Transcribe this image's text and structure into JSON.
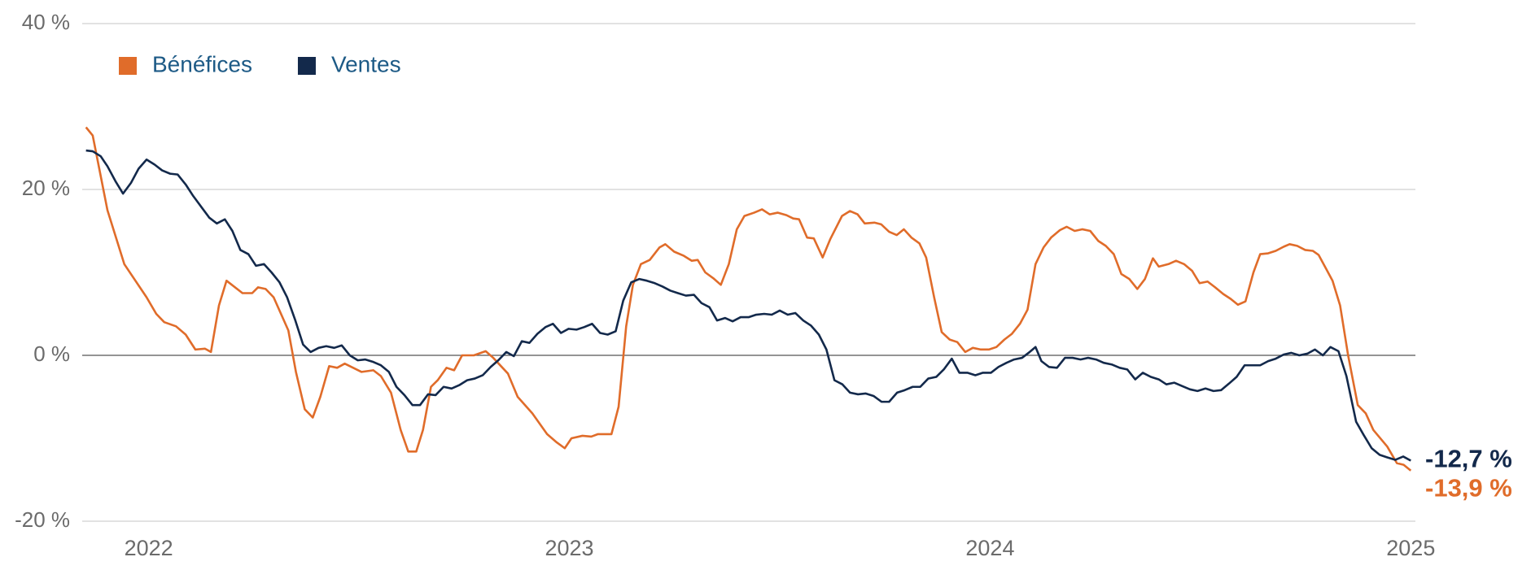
{
  "chart_data": {
    "type": "line",
    "legend": "top-left",
    "grid": true,
    "xlim": [
      2021.842,
      2025.011
    ],
    "xticks": [
      2022,
      2023,
      2024,
      2025
    ],
    "ylim": [
      -20,
      40
    ],
    "yticks": [
      {
        "value": -20,
        "label": "-20 %"
      },
      {
        "value": 0,
        "label": "0 %"
      },
      {
        "value": 20,
        "label": "20 %"
      },
      {
        "value": 40,
        "label": "40 %"
      }
    ],
    "series": [
      {
        "name": "Bénéfices",
        "color": "#e06c2a",
        "end_label": "-13,9 %",
        "x": [
          2021.851,
          2021.867,
          2021.902,
          2021.942,
          2021.995,
          2022.018,
          2022.037,
          2022.065,
          2022.088,
          2022.111,
          2022.134,
          2022.148,
          2022.167,
          2022.185,
          2022.223,
          2022.246,
          2022.26,
          2022.278,
          2022.297,
          2022.332,
          2022.35,
          2022.371,
          2022.39,
          2022.408,
          2022.429,
          2022.448,
          2022.466,
          2022.506,
          2022.534,
          2022.552,
          2022.576,
          2022.599,
          2022.617,
          2022.636,
          2022.652,
          2022.671,
          2022.687,
          2022.708,
          2022.726,
          2022.745,
          2022.773,
          2022.801,
          2022.819,
          2022.854,
          2022.877,
          2022.912,
          2022.947,
          2022.97,
          2022.989,
          2023.005,
          2023.031,
          2023.052,
          2023.068,
          2023.1,
          2023.117,
          2023.135,
          2023.151,
          2023.17,
          2023.191,
          2023.214,
          2023.228,
          2023.249,
          2023.272,
          2023.291,
          2023.305,
          2023.323,
          2023.342,
          2023.36,
          2023.379,
          2023.398,
          2023.416,
          2023.439,
          2023.458,
          2023.476,
          2023.495,
          2023.516,
          2023.532,
          2023.546,
          2023.565,
          2023.581,
          2023.602,
          2023.62,
          2023.648,
          2023.667,
          2023.685,
          2023.702,
          2023.725,
          2023.741,
          2023.76,
          2023.778,
          2023.795,
          2023.813,
          2023.832,
          2023.848,
          2023.867,
          2023.885,
          2023.904,
          2023.922,
          2023.941,
          2023.959,
          2023.978,
          2023.997,
          2024.015,
          2024.034,
          2024.052,
          2024.071,
          2024.089,
          2024.108,
          2024.127,
          2024.145,
          2024.166,
          2024.182,
          2024.201,
          2024.219,
          2024.238,
          2024.257,
          2024.275,
          2024.294,
          2024.312,
          2024.331,
          2024.35,
          2024.368,
          2024.387,
          2024.401,
          2024.424,
          2024.442,
          2024.461,
          2024.48,
          2024.498,
          2024.517,
          2024.535,
          2024.554,
          2024.572,
          2024.589,
          2024.607,
          2024.626,
          2024.642,
          2024.661,
          2024.679,
          2024.698,
          2024.712,
          2024.73,
          2024.749,
          2024.767,
          2024.781,
          2024.798,
          2024.814,
          2024.832,
          2024.851,
          2024.874,
          2024.893,
          2024.911,
          2024.944,
          2024.967,
          2024.983,
          2025.0
        ],
        "values": [
          27.5,
          26.5,
          17.5,
          11,
          7,
          5,
          4,
          3.5,
          2.5,
          0.7,
          0.8,
          0.4,
          6,
          9,
          7.5,
          7.5,
          8.2,
          8,
          7,
          3,
          -2,
          -6.5,
          -7.5,
          -5,
          -1.3,
          -1.5,
          -1,
          -2,
          -1.8,
          -2.5,
          -4.5,
          -9,
          -11.6,
          -11.6,
          -9,
          -3.8,
          -3,
          -1.5,
          -1.8,
          0,
          0,
          0.5,
          -0.3,
          -2.2,
          -5,
          -7,
          -9.5,
          -10.5,
          -11.2,
          -10,
          -9.7,
          -9.8,
          -9.5,
          -9.5,
          -6.2,
          3.5,
          8.5,
          11,
          11.5,
          13,
          13.4,
          12.5,
          12,
          11.4,
          11.5,
          10,
          9.3,
          8.5,
          11,
          15.2,
          16.8,
          17.2,
          17.6,
          17,
          17.2,
          16.9,
          16.5,
          16.4,
          14.2,
          14.1,
          11.8,
          14,
          16.8,
          17.4,
          17,
          15.9,
          16,
          15.8,
          14.9,
          14.5,
          15.2,
          14.2,
          13.5,
          11.8,
          7,
          2.8,
          1.9,
          1.6,
          0.4,
          0.9,
          0.7,
          0.7,
          1,
          1.9,
          2.6,
          3.8,
          5.5,
          11,
          13,
          14.2,
          15.1,
          15.5,
          15,
          15.2,
          15,
          13.8,
          13.2,
          12.2,
          9.8,
          9.2,
          8,
          9.2,
          11.7,
          10.7,
          11,
          11.4,
          11,
          10.2,
          8.7,
          8.9,
          8.2,
          7.4,
          6.8,
          6.1,
          6.5,
          10,
          12.2,
          12.3,
          12.6,
          13.1,
          13.4,
          13.2,
          12.7,
          12.6,
          12.1,
          10.5,
          9,
          6,
          0,
          -6,
          -7,
          -9,
          -11,
          -13,
          -13.2,
          -13.9
        ]
      },
      {
        "name": "Ventes",
        "color": "#13294b",
        "end_label": "-12,7 %",
        "x": [
          2021.851,
          2021.867,
          2021.886,
          2021.902,
          2021.921,
          2021.939,
          2021.958,
          2021.976,
          2021.995,
          2022.014,
          2022.032,
          2022.051,
          2022.069,
          2022.088,
          2022.106,
          2022.125,
          2022.144,
          2022.162,
          2022.181,
          2022.199,
          2022.218,
          2022.237,
          2022.255,
          2022.274,
          2022.292,
          2022.311,
          2022.329,
          2022.348,
          2022.367,
          2022.385,
          2022.404,
          2022.422,
          2022.441,
          2022.459,
          2022.478,
          2022.497,
          2022.515,
          2022.534,
          2022.552,
          2022.571,
          2022.589,
          2022.608,
          2022.627,
          2022.645,
          2022.664,
          2022.682,
          2022.701,
          2022.72,
          2022.738,
          2022.757,
          2022.775,
          2022.794,
          2022.813,
          2022.831,
          2022.85,
          2022.868,
          2022.887,
          2022.905,
          2022.924,
          2022.943,
          2022.961,
          2022.98,
          2022.998,
          2023.017,
          2023.035,
          2023.054,
          2023.073,
          2023.091,
          2023.11,
          2023.128,
          2023.147,
          2023.166,
          2023.184,
          2023.203,
          2023.221,
          2023.24,
          2023.258,
          2023.277,
          2023.296,
          2023.314,
          2023.333,
          2023.351,
          2023.37,
          2023.388,
          2023.407,
          2023.426,
          2023.444,
          2023.463,
          2023.481,
          2023.5,
          2023.519,
          2023.537,
          2023.556,
          2023.574,
          2023.593,
          2023.611,
          2023.63,
          2023.649,
          2023.667,
          2023.686,
          2023.704,
          2023.723,
          2023.742,
          2023.76,
          2023.779,
          2023.797,
          2023.816,
          2023.834,
          2023.853,
          2023.872,
          2023.89,
          2023.909,
          2023.927,
          2023.946,
          2023.965,
          2023.983,
          2024.002,
          2024.02,
          2024.039,
          2024.057,
          2024.076,
          2024.094,
          2024.108,
          2024.122,
          2024.14,
          2024.159,
          2024.178,
          2024.196,
          2024.215,
          2024.233,
          2024.252,
          2024.27,
          2024.289,
          2024.308,
          2024.326,
          2024.345,
          2024.363,
          2024.382,
          2024.401,
          2024.419,
          2024.438,
          2024.456,
          2024.475,
          2024.493,
          2024.512,
          2024.531,
          2024.549,
          2024.568,
          2024.586,
          2024.605,
          2024.624,
          2024.642,
          2024.661,
          2024.679,
          2024.698,
          2024.716,
          2024.735,
          2024.754,
          2024.772,
          2024.791,
          2024.809,
          2024.828,
          2024.847,
          2024.87,
          2024.888,
          2024.907,
          2024.926,
          2024.944,
          2024.963,
          2024.982,
          2025.0
        ],
        "values": [
          24.7,
          24.6,
          24,
          22.8,
          21,
          19.5,
          20.8,
          22.5,
          23.6,
          23,
          22.3,
          21.9,
          21.8,
          20.6,
          19.2,
          17.9,
          16.6,
          15.9,
          16.4,
          15,
          12.7,
          12.2,
          10.8,
          11,
          10,
          8.8,
          7,
          4.3,
          1.3,
          0.4,
          0.9,
          1.1,
          0.9,
          1.2,
          0,
          -0.6,
          -0.5,
          -0.8,
          -1.2,
          -2,
          -3.8,
          -4.8,
          -6,
          -6,
          -4.7,
          -4.8,
          -3.8,
          -4,
          -3.6,
          -3,
          -2.8,
          -2.4,
          -1.4,
          -0.6,
          0.4,
          -0.1,
          1.7,
          1.5,
          2.6,
          3.4,
          3.8,
          2.7,
          3.2,
          3.1,
          3.4,
          3.8,
          2.7,
          2.5,
          2.9,
          6.6,
          8.8,
          9.2,
          9,
          8.7,
          8.3,
          7.8,
          7.5,
          7.2,
          7.3,
          6.3,
          5.8,
          4.2,
          4.5,
          4.1,
          4.6,
          4.6,
          4.9,
          5,
          4.9,
          5.4,
          4.9,
          5.1,
          4.2,
          3.6,
          2.5,
          0.7,
          -3,
          -3.5,
          -4.5,
          -4.7,
          -4.6,
          -4.9,
          -5.6,
          -5.6,
          -4.5,
          -4.2,
          -3.8,
          -3.8,
          -2.8,
          -2.6,
          -1.7,
          -0.4,
          -2.1,
          -2.1,
          -2.4,
          -2.1,
          -2.1,
          -1.4,
          -0.9,
          -0.5,
          -0.3,
          0.4,
          1,
          -0.7,
          -1.4,
          -1.5,
          -0.3,
          -0.3,
          -0.5,
          -0.3,
          -0.5,
          -0.9,
          -1.1,
          -1.5,
          -1.7,
          -2.9,
          -2.1,
          -2.6,
          -2.9,
          -3.5,
          -3.3,
          -3.7,
          -4.1,
          -4.3,
          -4,
          -4.3,
          -4.2,
          -3.4,
          -2.6,
          -1.2,
          -1.2,
          -1.2,
          -0.7,
          -0.4,
          0.1,
          0.3,
          0,
          0.2,
          0.7,
          0,
          1,
          0.5,
          -2.5,
          -8,
          -9.6,
          -11.2,
          -12,
          -12.3,
          -12.6,
          -12.2,
          -12.7
        ]
      }
    ]
  }
}
